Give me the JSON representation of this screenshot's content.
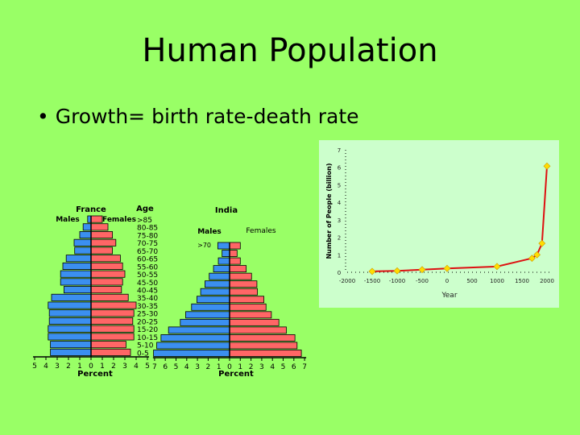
{
  "slide": {
    "title": "Human Population",
    "bullet": "• Growth= birth rate-death rate"
  },
  "colors": {
    "background": "#99ff66",
    "males": "#3b8ff0",
    "females": "#ff6666",
    "line": "#dd1111",
    "marker": "#ffdd00",
    "panel": "#ccffcc"
  },
  "chart_data": [
    {
      "type": "bar",
      "subtype": "population-pyramid",
      "title": "France",
      "age_header": "Age",
      "left_label": "Males",
      "right_label": "Females",
      "xlabel": "Percent",
      "categories": [
        ">85",
        "80-85",
        "75-80",
        "70-75",
        "65-70",
        "60-65",
        "55-60",
        "50-55",
        "45-50",
        "40-45",
        "35-40",
        "30-35",
        "25-30",
        "20-25",
        "15-20",
        "10-15",
        "5-10",
        "0-5"
      ],
      "series": [
        {
          "name": "Males",
          "values": [
            0.3,
            0.7,
            1.0,
            1.5,
            1.45,
            2.2,
            2.5,
            2.7,
            2.7,
            2.4,
            3.5,
            3.8,
            3.7,
            3.7,
            3.8,
            3.8,
            3.6,
            3.6
          ]
        },
        {
          "name": "Females",
          "values": [
            1.0,
            1.5,
            1.9,
            2.2,
            1.9,
            2.6,
            2.8,
            3.0,
            2.8,
            2.7,
            3.3,
            4.0,
            3.8,
            3.7,
            3.8,
            3.8,
            3.1,
            3.5
          ]
        }
      ],
      "xticks": [
        5,
        4,
        3,
        2,
        1,
        0,
        1,
        2,
        3,
        4,
        5
      ]
    },
    {
      "type": "bar",
      "subtype": "population-pyramid",
      "title": "India",
      "left_label": "Males",
      "right_label": "Females",
      "xlabel": "Percent",
      "top_age_label": ">70",
      "series": [
        {
          "name": "Males",
          "values": [
            1.1,
            0.7,
            1.05,
            1.5,
            1.9,
            2.3,
            2.7,
            3.05,
            3.55,
            4.1,
            4.6,
            5.7,
            6.4,
            6.8,
            7.1
          ]
        },
        {
          "name": "Females",
          "values": [
            1.0,
            0.7,
            1.0,
            1.55,
            2.05,
            2.55,
            2.6,
            3.2,
            3.4,
            3.9,
            4.6,
            5.3,
            6.1,
            6.3,
            6.7
          ]
        }
      ],
      "xticks": [
        7,
        6,
        5,
        4,
        3,
        2,
        1,
        0,
        1,
        2,
        3,
        4,
        5,
        6,
        7
      ]
    },
    {
      "type": "line",
      "xlabel": "Year",
      "ylabel": "Number of People (billion)",
      "xlim": [
        -2000,
        2000
      ],
      "ylim": [
        0,
        7
      ],
      "xticks": [
        -2000,
        -1500,
        -1000,
        -500,
        0,
        500,
        1000,
        1500,
        2000
      ],
      "yticks": [
        0,
        1,
        2,
        3,
        4,
        5,
        6,
        7
      ],
      "x": [
        -1500,
        -1000,
        -500,
        0,
        1000,
        1700,
        1800,
        1900,
        2000
      ],
      "y": [
        0.05,
        0.08,
        0.15,
        0.22,
        0.33,
        0.8,
        1.0,
        1.65,
        6.07
      ]
    }
  ]
}
